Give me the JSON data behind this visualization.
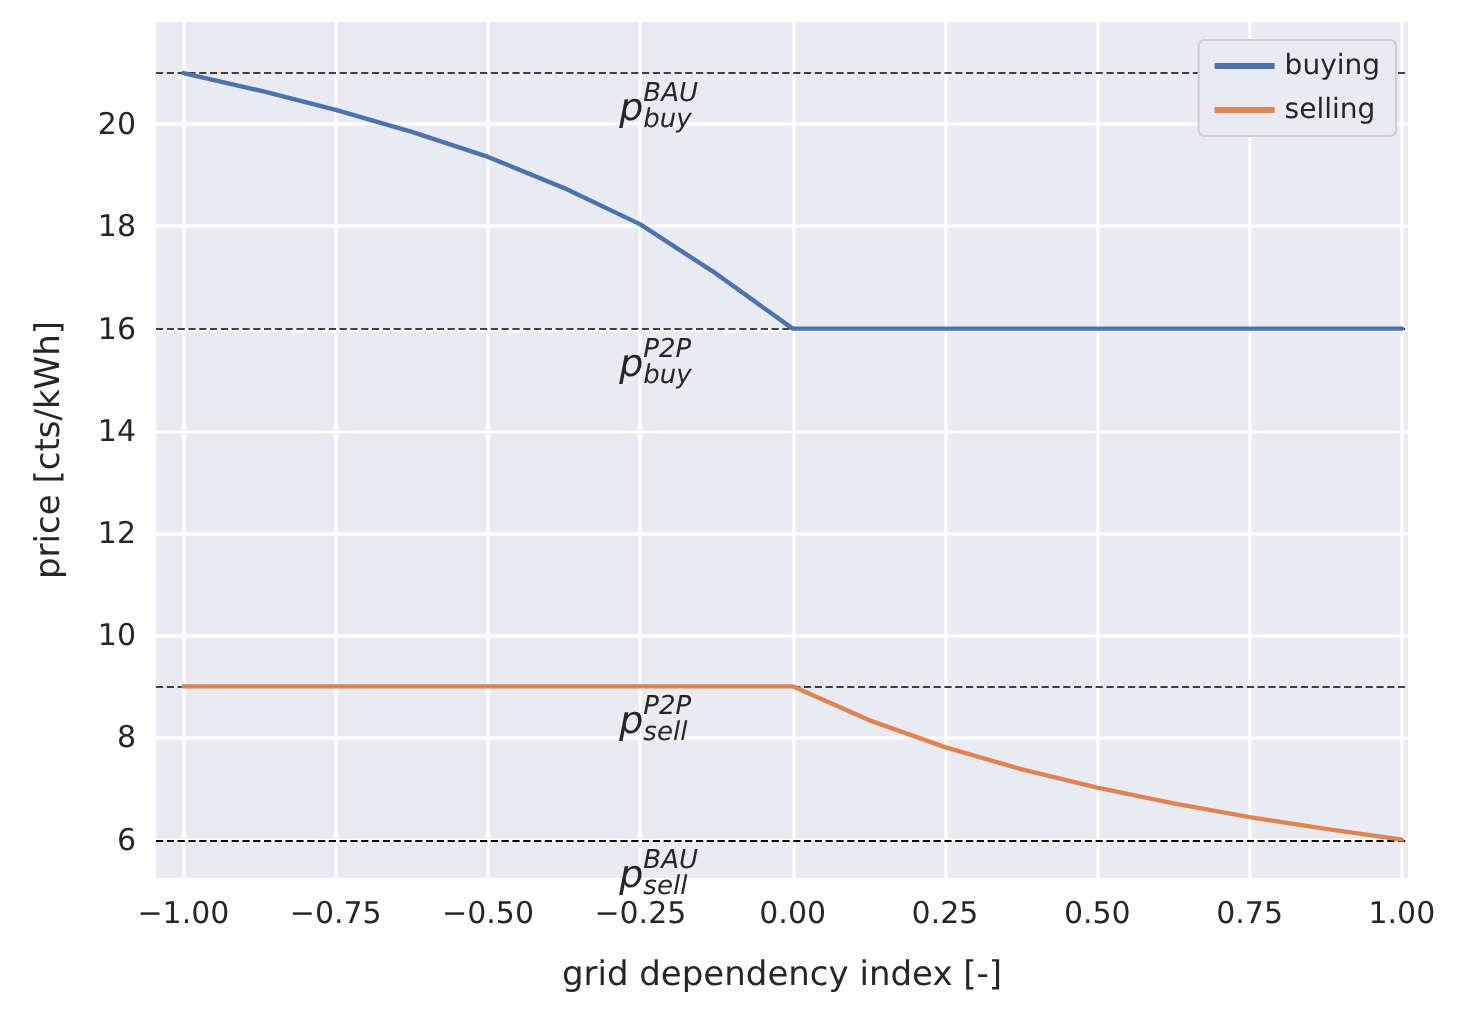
{
  "chart_data": {
    "type": "line",
    "xlabel": "grid dependency index [-]",
    "ylabel": "price [cts/kWh]",
    "series": [
      {
        "name": "buying",
        "color": "#4c72b0",
        "x": [
          -1,
          -0.875,
          -0.75,
          -0.625,
          -0.5,
          -0.375,
          -0.25,
          -0.125,
          0,
          1
        ],
        "values": [
          21,
          20.66,
          20.28,
          19.85,
          19.36,
          18.75,
          18.04,
          17.07,
          16,
          16
        ]
      },
      {
        "name": "selling",
        "color": "#dd8452",
        "x": [
          -1,
          0,
          0.125,
          0.25,
          0.375,
          0.5,
          0.625,
          0.75,
          0.875,
          1
        ],
        "values": [
          9,
          9,
          8.34,
          7.81,
          7.38,
          7.02,
          6.71,
          6.44,
          6.21,
          6
        ]
      }
    ],
    "xlim": [
      -1.045,
      1.01
    ],
    "ylim": [
      5.25,
      22
    ],
    "xticks": [
      {
        "value": -1,
        "label": "−1.00"
      },
      {
        "value": -0.75,
        "label": "−0.75"
      },
      {
        "value": -0.5,
        "label": "−0.50"
      },
      {
        "value": -0.25,
        "label": "−0.25"
      },
      {
        "value": 0,
        "label": "0.00"
      },
      {
        "value": 0.25,
        "label": "0.25"
      },
      {
        "value": 0.5,
        "label": "0.50"
      },
      {
        "value": 0.75,
        "label": "0.75"
      },
      {
        "value": 1,
        "label": "1.00"
      }
    ],
    "yticks": [
      6,
      8,
      10,
      12,
      14,
      16,
      18,
      20
    ],
    "ref_lines": [
      {
        "axis": "y",
        "value": 21,
        "label": "p$_{buy}$$^{BAU}$",
        "color": "#404040",
        "line_style": "dashed"
      },
      {
        "axis": "y",
        "value": 16,
        "label": "p$_{buy}$$^{P2P}$",
        "color": "#404040",
        "line_style": "dashed"
      },
      {
        "axis": "y",
        "value": 9,
        "label": "p$_{sell}$$^{P2P}$",
        "color": "#404040",
        "line_style": "dashed"
      },
      {
        "axis": "y",
        "value": 6,
        "label": "p$_{sell}$$^{BAU}$",
        "color": "#000000",
        "line_style": "dashed"
      }
    ],
    "grid": true,
    "legend": "top right",
    "marker": "none",
    "line_style": "solid"
  }
}
